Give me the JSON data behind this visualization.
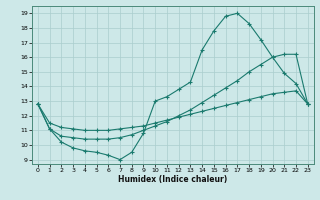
{
  "bg_color": "#cde8e8",
  "line_color": "#1a7a6e",
  "grid_color": "#aacece",
  "xlim_min": -0.5,
  "xlim_max": 23.5,
  "ylim_min": 8.7,
  "ylim_max": 19.5,
  "xticks": [
    0,
    1,
    2,
    3,
    4,
    5,
    6,
    7,
    8,
    9,
    10,
    11,
    12,
    13,
    14,
    15,
    16,
    17,
    18,
    19,
    20,
    21,
    22,
    23
  ],
  "yticks": [
    9,
    10,
    11,
    12,
    13,
    14,
    15,
    16,
    17,
    18,
    19
  ],
  "xlabel": "Humidex (Indice chaleur)",
  "line1_x": [
    0,
    1,
    2,
    3,
    4,
    5,
    6,
    7,
    8,
    9,
    10,
    11,
    12,
    13,
    14,
    15,
    16,
    17,
    18,
    19,
    20,
    21,
    22,
    23
  ],
  "line1_y": [
    12.8,
    11.1,
    10.2,
    9.8,
    9.6,
    9.5,
    9.3,
    9.0,
    9.5,
    10.8,
    13.0,
    13.3,
    13.8,
    14.3,
    16.5,
    17.8,
    18.8,
    19.0,
    18.3,
    17.2,
    16.0,
    14.9,
    14.2,
    12.8
  ],
  "line2_x": [
    0,
    1,
    2,
    3,
    4,
    5,
    6,
    7,
    8,
    9,
    10,
    11,
    12,
    13,
    14,
    15,
    16,
    17,
    18,
    19,
    20,
    21,
    22,
    23
  ],
  "line2_y": [
    12.8,
    11.1,
    10.6,
    10.5,
    10.4,
    10.4,
    10.4,
    10.5,
    10.7,
    11.0,
    11.3,
    11.6,
    12.0,
    12.4,
    12.9,
    13.4,
    13.9,
    14.4,
    15.0,
    15.5,
    16.0,
    16.2,
    16.2,
    12.8
  ],
  "line3_x": [
    0,
    1,
    2,
    3,
    4,
    5,
    6,
    7,
    8,
    9,
    10,
    11,
    12,
    13,
    14,
    15,
    16,
    17,
    18,
    19,
    20,
    21,
    22,
    23
  ],
  "line3_y": [
    12.8,
    11.5,
    11.2,
    11.1,
    11.0,
    11.0,
    11.0,
    11.1,
    11.2,
    11.3,
    11.5,
    11.7,
    11.9,
    12.1,
    12.3,
    12.5,
    12.7,
    12.9,
    13.1,
    13.3,
    13.5,
    13.6,
    13.7,
    12.8
  ]
}
